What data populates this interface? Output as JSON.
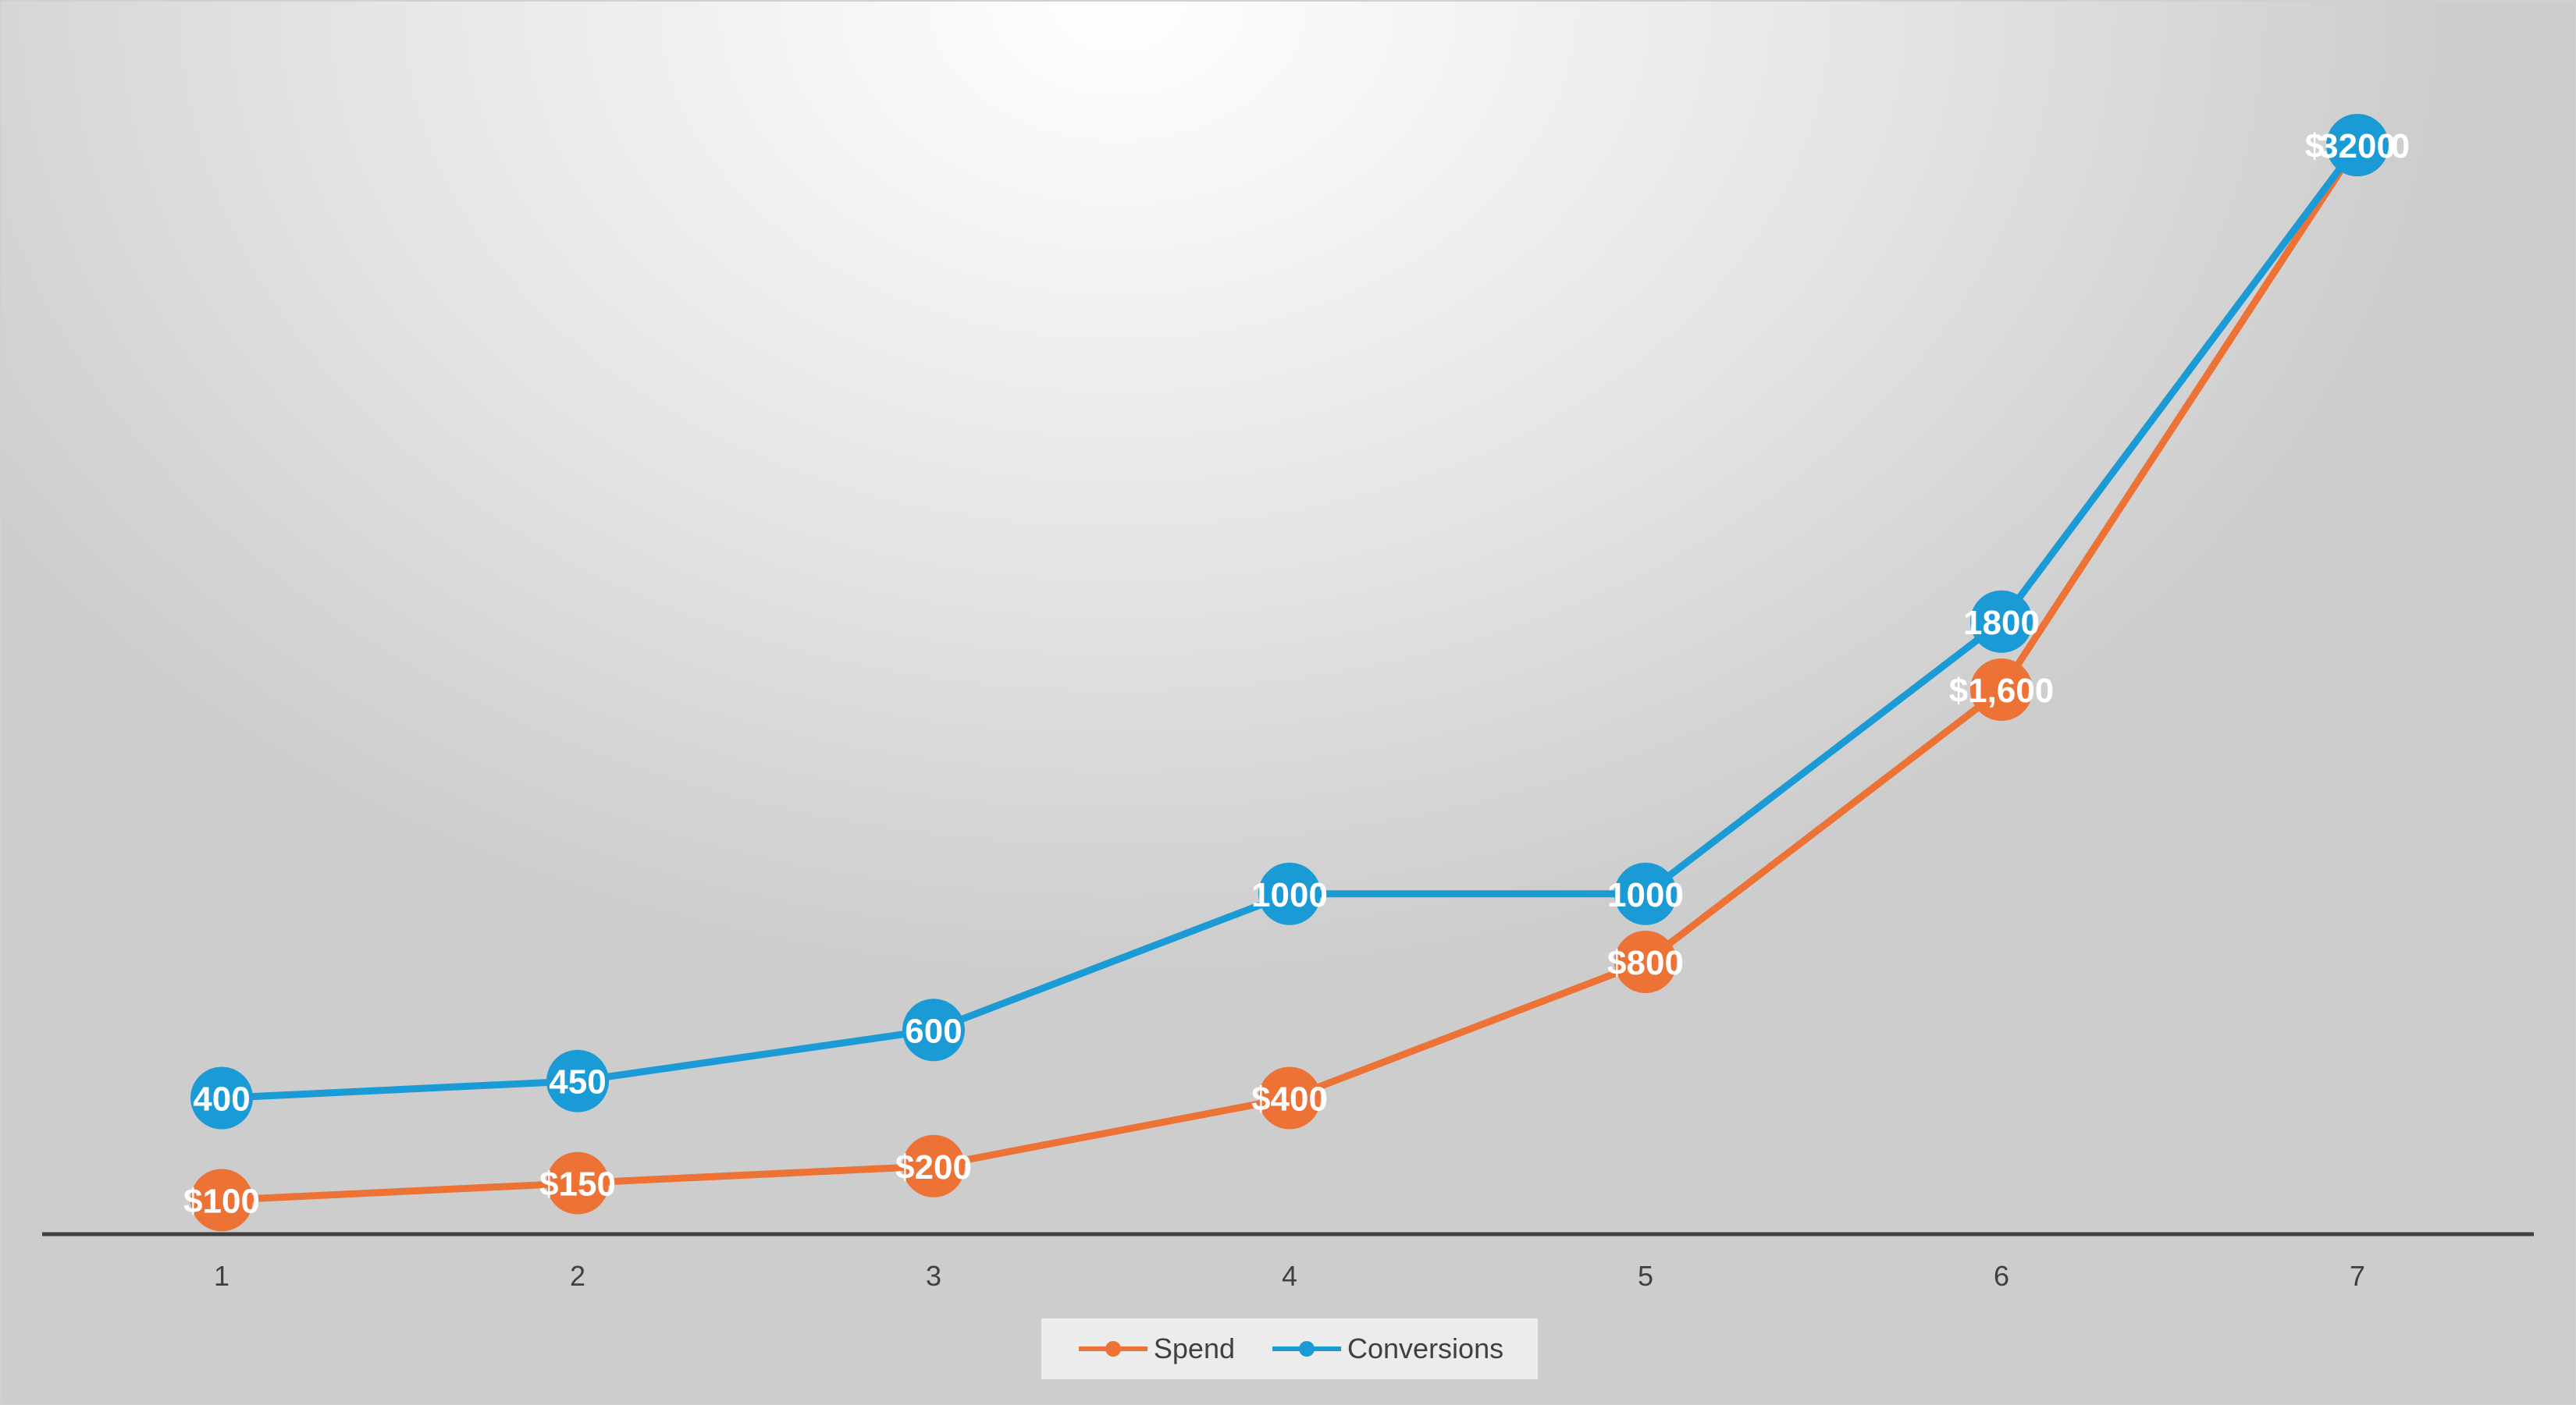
{
  "chart_data": {
    "type": "line",
    "title": "",
    "xlabel": "",
    "ylabel": "",
    "x": [
      "1",
      "2",
      "3",
      "4",
      "5",
      "6",
      "7"
    ],
    "ylim": [
      0,
      3200
    ],
    "grid": false,
    "legend_position": "bottom",
    "series": [
      {
        "name": "Spend",
        "color": "#ED7235",
        "values": [
          100,
          150,
          200,
          400,
          800,
          1600,
          3200
        ],
        "labels": [
          "$100",
          "$150",
          "$200",
          "$400",
          "$800",
          "$1,600",
          "$3,200"
        ]
      },
      {
        "name": "Conversions",
        "color": "#1A9BD6",
        "values": [
          400,
          450,
          600,
          1000,
          1000,
          1800,
          3200
        ],
        "labels": [
          "400",
          "450",
          "600",
          "1000",
          "1000",
          "1800",
          "3200"
        ]
      }
    ]
  }
}
